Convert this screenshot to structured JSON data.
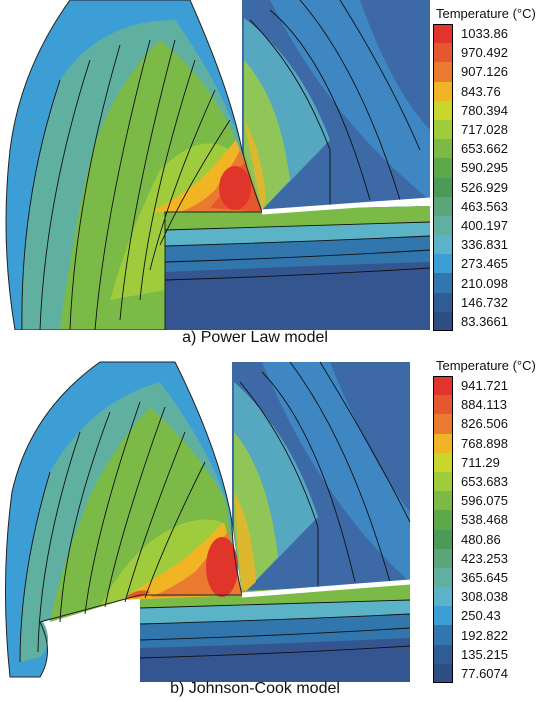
{
  "panels": [
    {
      "caption": "a) Power Law model",
      "legend": {
        "title": "Temperature (°C)",
        "values": [
          "1033.86",
          "970.492",
          "907.126",
          "843.76",
          "780.394",
          "717.028",
          "653.662",
          "590.295",
          "526.929",
          "463.563",
          "400.197",
          "336.831",
          "273.465",
          "210.098",
          "146.732",
          "83.3661"
        ]
      }
    },
    {
      "caption": "b) Johnson-Cook model",
      "legend": {
        "title": "Temperature (°C)",
        "values": [
          "941.721",
          "884.113",
          "826.506",
          "768.898",
          "711.29",
          "653.683",
          "596.075",
          "538.468",
          "480.86",
          "423.253",
          "365.645",
          "308.038",
          "250.43",
          "192.822",
          "135.215",
          "77.6074"
        ]
      }
    }
  ],
  "legend_colors": [
    "#e0352a",
    "#e5582d",
    "#ea7a30",
    "#f0b424",
    "#c9d62e",
    "#9fcc3d",
    "#7cba47",
    "#5fa848",
    "#4c9a5a",
    "#5ba679",
    "#5fb0a0",
    "#5ab3c6",
    "#3d9ed6",
    "#3176ad",
    "#2f5c94",
    "#2d4d84"
  ],
  "colors": {
    "tool": "#3d6aa6",
    "workpiece": "#3a5d98",
    "chip_base": "#5fa848",
    "hot": "#e0352a"
  }
}
